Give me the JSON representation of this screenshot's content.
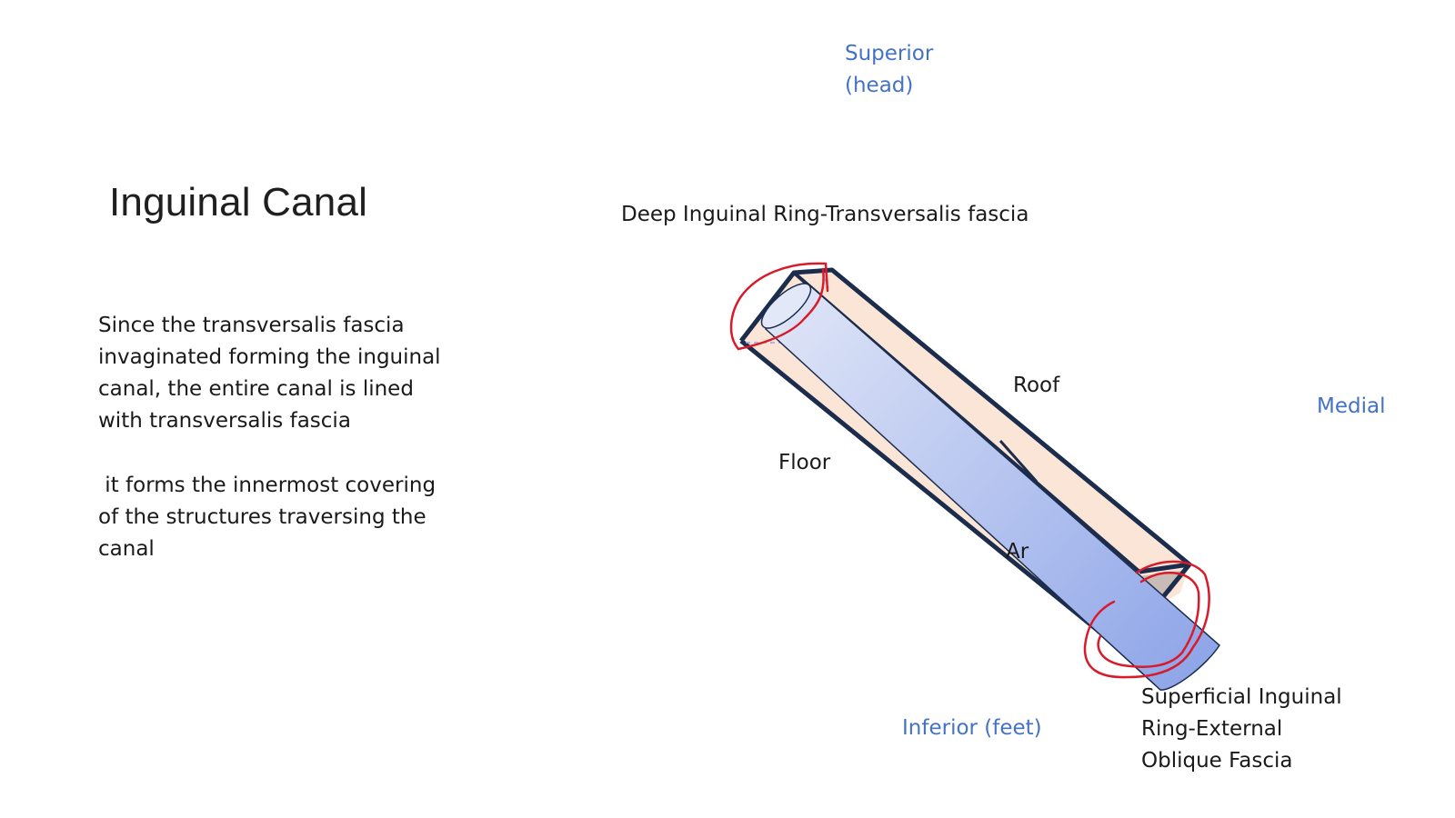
{
  "slide": {
    "title": "Inguinal Canal",
    "paragraphs": [
      [
        "Since the transversalis fascia",
        "invaginated forming the inguinal",
        "canal, the entire canal is lined",
        "with transversalis fascia"
      ],
      [
        " it forms the innermost covering",
        "of the structures traversing the",
        "canal"
      ]
    ]
  },
  "diagram": {
    "labels": {
      "deep_ring": "Deep Inguinal Ring-Transversalis fascia",
      "roof": "Roof",
      "floor": "Floor",
      "anterior_partial": "Ar",
      "superficial_ring": [
        "Superficial Inguinal",
        "Ring-External",
        "Oblique Fascia"
      ]
    },
    "directions": {
      "superior": [
        "Superior",
        "(head)"
      ],
      "medial": "Medial",
      "inferior": "Inferior (feet)"
    },
    "colors": {
      "canal_fill": "#fbe5d6",
      "canal_outline": "#1c2c4c",
      "cylinder_light": "#dfe5f7",
      "cylinder_dark": "#8ea5e8",
      "annotation_red": "#d81b2a",
      "direction_text": "#4472c4"
    }
  }
}
